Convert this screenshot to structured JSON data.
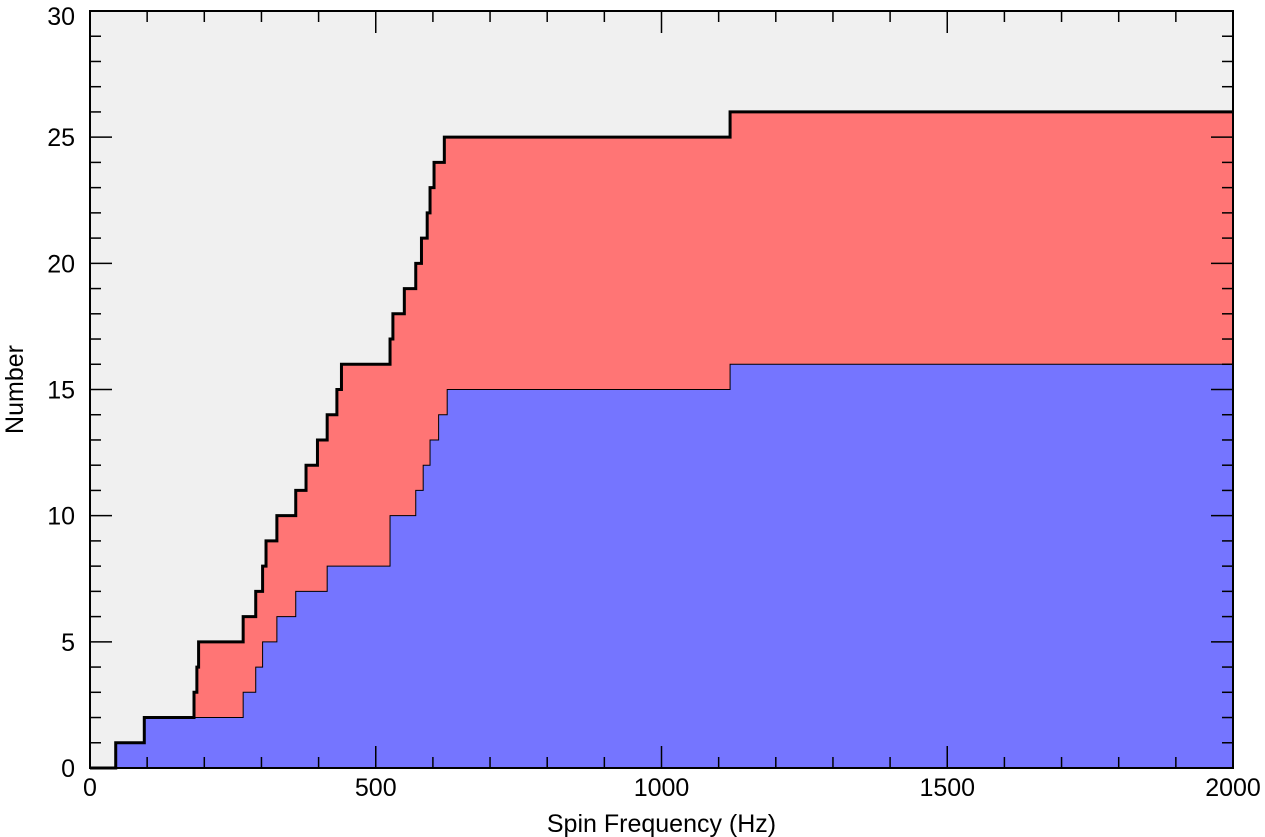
{
  "chart_data": {
    "type": "area",
    "xlabel": "Spin Frequency (Hz)",
    "ylabel": "Number",
    "xlim": [
      0,
      2000
    ],
    "ylim": [
      0,
      30
    ],
    "xticks": [
      0,
      500,
      1000,
      1500,
      2000
    ],
    "yticks": [
      0,
      5,
      10,
      15,
      20,
      25,
      30
    ],
    "x_minor_step": 100,
    "y_minor_step": 1,
    "colors": {
      "background": "#f0f0f0",
      "blue_fill": "#7575ff",
      "red_fill": "#ff7575",
      "outline": "#000000"
    },
    "series": [
      {
        "values_x": [
          45,
          95,
          182,
          268,
          290,
          302,
          327,
          360,
          390,
          415,
          525,
          570,
          583,
          595,
          610,
          625,
          1120
        ],
        "values_y": [
          1,
          2,
          2,
          3,
          4,
          5,
          6,
          7,
          7,
          8,
          10,
          11,
          12,
          13,
          14,
          15,
          16
        ]
      },
      {
        "values_x": [
          45,
          95,
          182,
          187,
          190,
          268,
          290,
          302,
          308,
          327,
          360,
          378,
          398,
          415,
          432,
          440,
          525,
          530,
          550,
          570,
          572,
          580,
          586,
          590,
          595,
          602,
          608,
          620,
          1120
        ],
        "values_y": [
          1,
          2,
          3,
          4,
          5,
          6,
          7,
          8,
          9,
          10,
          11,
          12,
          13,
          14,
          15,
          16,
          17,
          18,
          19,
          20,
          20,
          21,
          21,
          22,
          23,
          24,
          24,
          25,
          26
        ]
      }
    ]
  }
}
